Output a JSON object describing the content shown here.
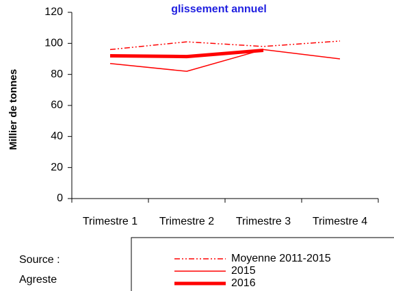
{
  "chart_data": {
    "type": "line",
    "title": "glissement annuel",
    "y_label": "Millier de tonnes",
    "categories": [
      "Trimestre 1",
      "Trimestre 2",
      "Trimestre 3",
      "Trimestre 4"
    ],
    "series": [
      {
        "name": "Moyenne 2011-2015",
        "color": "#ff0000",
        "style": "dash-dot-dot",
        "width": 1.5,
        "values": [
          96,
          101,
          98,
          101.5
        ]
      },
      {
        "name": "2015",
        "color": "#ff0000",
        "style": "solid",
        "width": 1.5,
        "values": [
          87,
          82,
          96,
          90
        ]
      },
      {
        "name": "2016",
        "color": "#ff0000",
        "style": "solid",
        "width": 5,
        "values": [
          92,
          91.5,
          95.5,
          null
        ]
      }
    ],
    "ylim": [
      0,
      120
    ],
    "yticks": [
      0,
      20,
      40,
      60,
      80,
      100,
      120
    ],
    "grid": false,
    "source": [
      "Source :",
      "Agreste"
    ]
  }
}
